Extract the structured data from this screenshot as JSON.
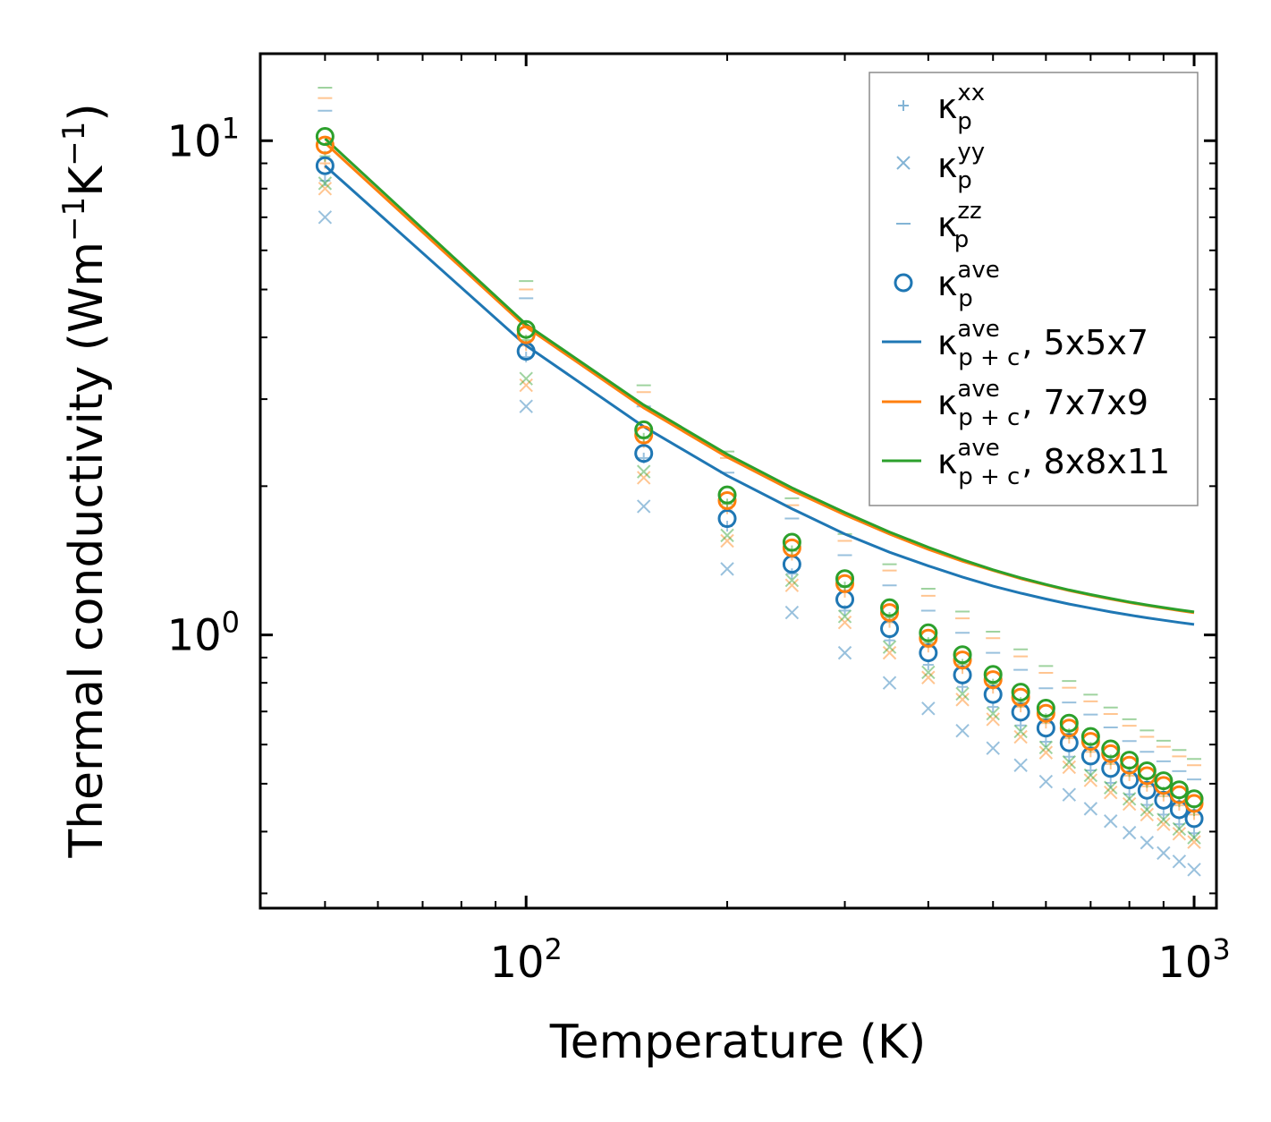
{
  "chart_data": {
    "type": "scatter",
    "title": "",
    "xlabel": "Temperature (K)",
    "ylabel_parts": [
      "Thermal conductivity (Wm",
      "−1",
      "K",
      "−1",
      ")"
    ],
    "xscale": "log",
    "yscale": "log",
    "xlim": [
      40,
      1080
    ],
    "ylim": [
      0.28,
      15
    ],
    "x_ticks": [
      {
        "value": 100,
        "base": "10",
        "exp": "2"
      },
      {
        "value": 1000,
        "base": "10",
        "exp": "3"
      }
    ],
    "y_ticks": [
      {
        "value": 1,
        "base": "10",
        "exp": "0"
      },
      {
        "value": 10,
        "base": "10",
        "exp": "1"
      }
    ],
    "legend_position": "top-right",
    "temperatures": [
      50,
      100,
      150,
      200,
      250,
      300,
      350,
      400,
      450,
      500,
      550,
      600,
      650,
      700,
      750,
      800,
      850,
      900,
      950,
      1000
    ],
    "meshes": [
      {
        "name": "5x5x7",
        "color": "#1f77b4",
        "kxx": [
          8.3,
          3.65,
          2.28,
          1.66,
          1.33,
          1.12,
          0.975,
          0.87,
          0.785,
          0.715,
          0.656,
          0.608,
          0.567,
          0.532,
          0.502,
          0.476,
          0.453,
          0.433,
          0.414,
          0.397
        ],
        "kyy": [
          7.0,
          2.9,
          1.82,
          1.36,
          1.11,
          0.92,
          0.8,
          0.71,
          0.64,
          0.59,
          0.545,
          0.505,
          0.475,
          0.445,
          0.42,
          0.398,
          0.38,
          0.362,
          0.348,
          0.335
        ],
        "kzz": [
          11.5,
          4.8,
          2.9,
          2.13,
          1.72,
          1.45,
          1.26,
          1.12,
          1.01,
          0.92,
          0.85,
          0.78,
          0.73,
          0.69,
          0.65,
          0.61,
          0.58,
          0.555,
          0.53,
          0.51
        ],
        "kave": [
          8.9,
          3.75,
          2.33,
          1.72,
          1.39,
          1.18,
          1.03,
          0.92,
          0.83,
          0.758,
          0.698,
          0.648,
          0.605,
          0.569,
          0.537,
          0.509,
          0.485,
          0.463,
          0.443,
          0.425
        ],
        "ktot": [
          8.9,
          3.85,
          2.64,
          2.1,
          1.8,
          1.6,
          1.47,
          1.38,
          1.31,
          1.255,
          1.215,
          1.182,
          1.155,
          1.133,
          1.113,
          1.097,
          1.083,
          1.071,
          1.06,
          1.05
        ]
      },
      {
        "name": "7x7x9",
        "color": "#ff7f0e",
        "kxx": [
          9.0,
          3.85,
          2.45,
          1.8,
          1.45,
          1.22,
          1.06,
          0.945,
          0.855,
          0.78,
          0.715,
          0.663,
          0.618,
          0.58,
          0.548,
          0.519,
          0.494,
          0.472,
          0.452,
          0.433
        ],
        "kyy": [
          8.0,
          3.2,
          2.08,
          1.55,
          1.26,
          1.06,
          0.92,
          0.82,
          0.74,
          0.675,
          0.622,
          0.578,
          0.54,
          0.508,
          0.48,
          0.455,
          0.433,
          0.414,
          0.396,
          0.381
        ],
        "kzz": [
          12.2,
          5.0,
          3.1,
          2.28,
          1.83,
          1.55,
          1.35,
          1.2,
          1.08,
          0.985,
          0.905,
          0.838,
          0.782,
          0.734,
          0.692,
          0.655,
          0.622,
          0.594,
          0.568,
          0.545
        ],
        "kave": [
          9.8,
          4.05,
          2.54,
          1.87,
          1.5,
          1.27,
          1.11,
          0.985,
          0.89,
          0.812,
          0.748,
          0.694,
          0.648,
          0.609,
          0.575,
          0.545,
          0.519,
          0.496,
          0.475,
          0.456
        ],
        "ktot": [
          9.9,
          4.2,
          2.88,
          2.29,
          1.96,
          1.75,
          1.6,
          1.49,
          1.41,
          1.35,
          1.3,
          1.262,
          1.23,
          1.204,
          1.182,
          1.163,
          1.147,
          1.133,
          1.12,
          1.109
        ]
      },
      {
        "name": "8x8x11",
        "color": "#2ca02c",
        "kxx": [
          9.3,
          3.95,
          2.5,
          1.84,
          1.48,
          1.25,
          1.085,
          0.965,
          0.872,
          0.795,
          0.73,
          0.677,
          0.631,
          0.592,
          0.559,
          0.529,
          0.503,
          0.481,
          0.46,
          0.441
        ],
        "kyy": [
          8.2,
          3.3,
          2.14,
          1.59,
          1.29,
          1.09,
          0.945,
          0.84,
          0.76,
          0.693,
          0.638,
          0.592,
          0.553,
          0.52,
          0.491,
          0.466,
          0.443,
          0.423,
          0.405,
          0.389
        ],
        "kzz": [
          12.8,
          5.2,
          3.2,
          2.35,
          1.89,
          1.6,
          1.39,
          1.24,
          1.115,
          1.015,
          0.935,
          0.865,
          0.807,
          0.757,
          0.713,
          0.675,
          0.641,
          0.611,
          0.585,
          0.561
        ],
        "kave": [
          10.2,
          4.15,
          2.6,
          1.92,
          1.54,
          1.3,
          1.135,
          1.01,
          0.912,
          0.832,
          0.766,
          0.711,
          0.663,
          0.623,
          0.588,
          0.558,
          0.531,
          0.507,
          0.486,
          0.466
        ],
        "ktot": [
          10.1,
          4.25,
          2.92,
          2.32,
          1.985,
          1.77,
          1.615,
          1.505,
          1.42,
          1.355,
          1.305,
          1.265,
          1.233,
          1.207,
          1.185,
          1.166,
          1.15,
          1.136,
          1.124,
          1.113
        ]
      }
    ],
    "legend": [
      {
        "key": "kxx",
        "sym": "κ",
        "sub": "p",
        "sup": "xx",
        "suffix": ""
      },
      {
        "key": "kyy",
        "sym": "κ",
        "sub": "p",
        "sup": "yy",
        "suffix": ""
      },
      {
        "key": "kzz",
        "sym": "κ",
        "sub": "p",
        "sup": "zz",
        "suffix": ""
      },
      {
        "key": "kave",
        "sym": "κ",
        "sub": "p",
        "sup": "ave",
        "suffix": ""
      },
      {
        "key": "ktot0",
        "sym": "κ",
        "sub": "p + c",
        "sup": "ave",
        "suffix": ", 5x5x7"
      },
      {
        "key": "ktot1",
        "sym": "κ",
        "sub": "p + c",
        "sup": "ave",
        "suffix": ", 7x7x9"
      },
      {
        "key": "ktot2",
        "sym": "κ",
        "sub": "p + c",
        "sup": "ave",
        "suffix": ", 8x8x11"
      }
    ]
  }
}
